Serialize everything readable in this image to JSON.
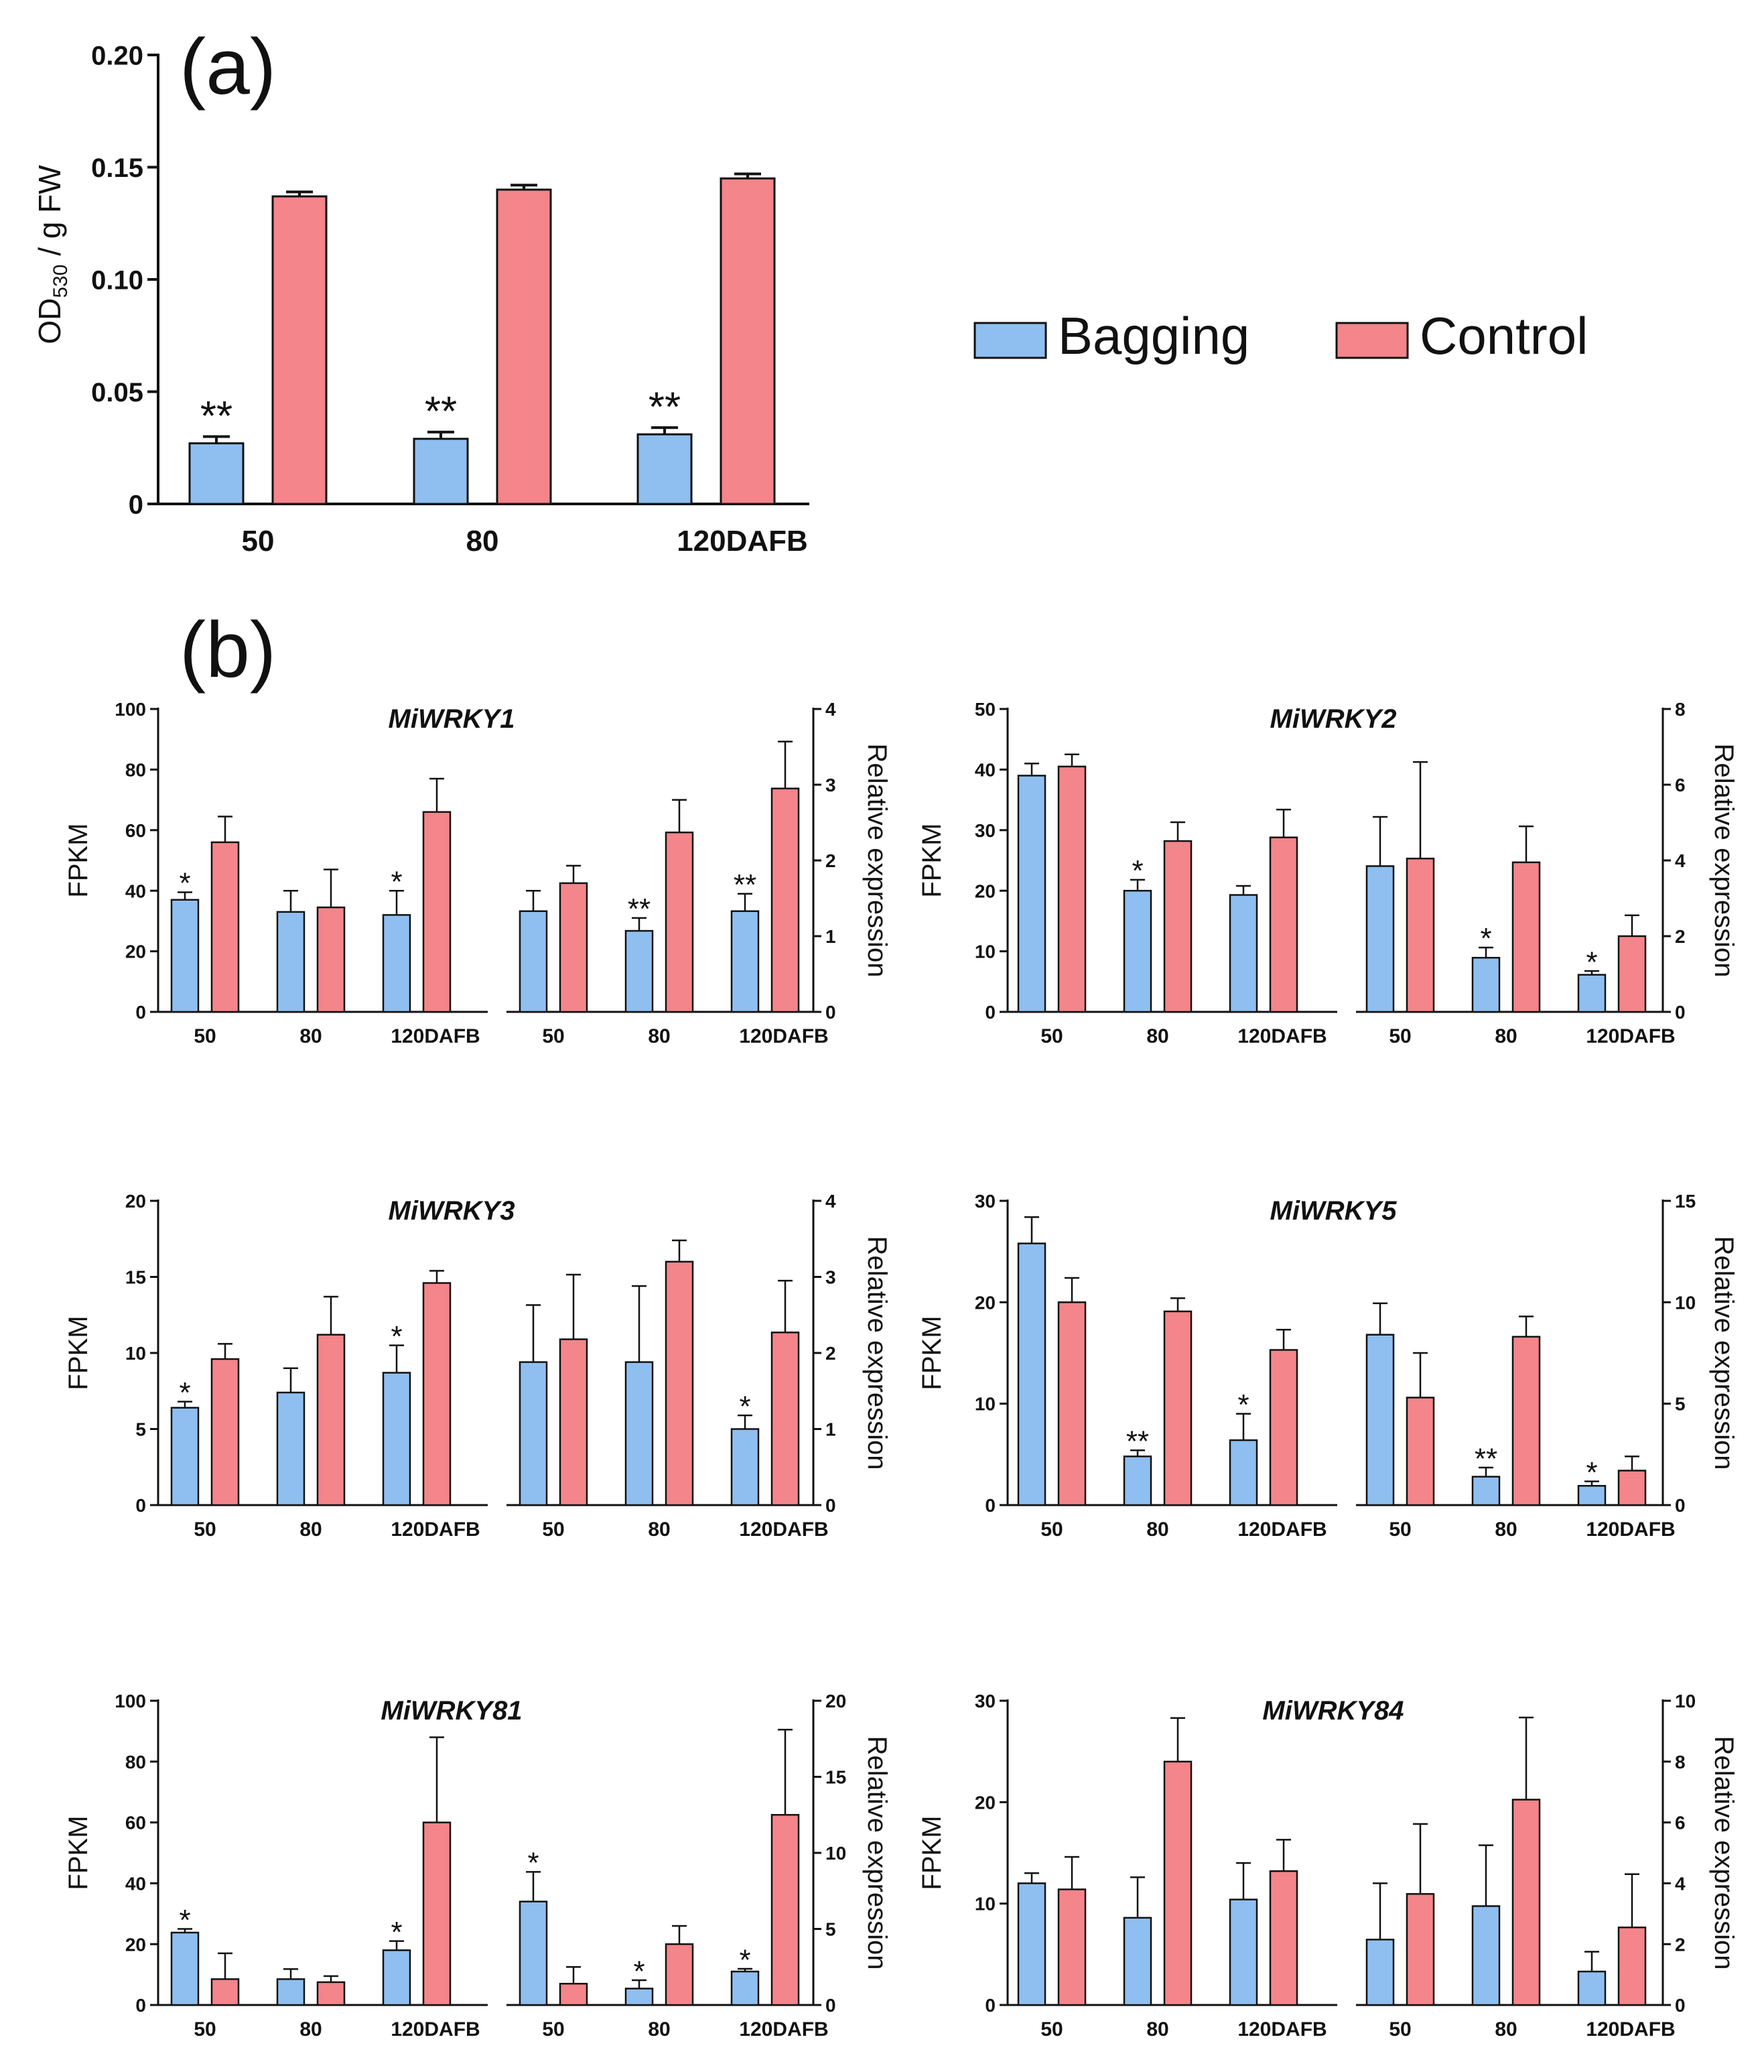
{
  "figure": {
    "colors": {
      "bagging": "#8fbff0",
      "control": "#f4858a",
      "axis": "#111111"
    },
    "legend": {
      "items": [
        "Bagging",
        "Control"
      ]
    }
  },
  "chart_data": [
    {
      "id": "a",
      "panel_label": "(a)",
      "type": "bar",
      "title": "",
      "categories": [
        "50",
        "80",
        "120DAFB"
      ],
      "ylabel_main": "OD",
      "ylabel_sub": "530",
      "ylabel_rest": " / g FW",
      "ylim": [
        0,
        0.2
      ],
      "yticks": [
        0,
        0.05,
        0.1,
        0.15,
        0.2
      ],
      "ytick_labels": [
        "0",
        "0.05",
        "0.10",
        "0.15",
        "0.20"
      ],
      "series": [
        {
          "name": "Bagging",
          "values": [
            0.027,
            0.029,
            0.031
          ],
          "errors": [
            0.003,
            0.003,
            0.003
          ],
          "marks": [
            "**",
            "**",
            "**"
          ]
        },
        {
          "name": "Control",
          "values": [
            0.137,
            0.14,
            0.145
          ],
          "errors": [
            0.002,
            0.002,
            0.002
          ],
          "marks": [
            "",
            "",
            ""
          ]
        }
      ]
    },
    {
      "id": "b-wrky1",
      "panel_label": "(b)",
      "type": "bar",
      "title": "MiWRKY1",
      "categories": [
        "50",
        "80",
        "120DAFB"
      ],
      "left": {
        "ylabel": "FPKM",
        "ylim": [
          0,
          100
        ],
        "yticks": [
          0,
          20,
          40,
          60,
          80,
          100
        ],
        "series": [
          {
            "name": "Bagging",
            "values": [
              37,
              33,
              32
            ],
            "errors": [
              2.5,
              7,
              8
            ],
            "marks": [
              "*",
              "",
              "*"
            ]
          },
          {
            "name": "Control",
            "values": [
              56,
              34.5,
              66
            ],
            "errors": [
              8.5,
              12.5,
              11
            ],
            "marks": [
              "",
              "",
              ""
            ]
          }
        ]
      },
      "right": {
        "ylabel": "Relative expression",
        "ylim": [
          0,
          4
        ],
        "yticks": [
          0,
          1,
          2,
          3,
          4
        ],
        "series": [
          {
            "name": "Bagging",
            "values": [
              1.33,
              1.07,
              1.33
            ],
            "errors": [
              0.27,
              0.17,
              0.23
            ],
            "marks": [
              "",
              "**",
              "**"
            ]
          },
          {
            "name": "Control",
            "values": [
              1.7,
              2.37,
              2.95
            ],
            "errors": [
              0.23,
              0.43,
              0.62
            ],
            "marks": [
              "",
              "",
              ""
            ]
          }
        ]
      }
    },
    {
      "id": "b-wrky2",
      "type": "bar",
      "title": "MiWRKY2",
      "categories": [
        "50",
        "80",
        "120DAFB"
      ],
      "left": {
        "ylabel": "FPKM",
        "ylim": [
          0,
          50
        ],
        "yticks": [
          0,
          10,
          20,
          30,
          40,
          50
        ],
        "series": [
          {
            "name": "Bagging",
            "values": [
              39,
              20,
              19.3
            ],
            "errors": [
              2,
              1.8,
              1.5
            ],
            "marks": [
              "",
              "*",
              ""
            ]
          },
          {
            "name": "Control",
            "values": [
              40.5,
              28.2,
              28.8
            ],
            "errors": [
              2,
              3.1,
              4.6
            ],
            "marks": [
              "",
              "",
              ""
            ]
          }
        ]
      },
      "right": {
        "ylabel": "Relative expression",
        "ylim": [
          0,
          8
        ],
        "yticks": [
          0,
          2,
          4,
          6,
          8
        ],
        "series": [
          {
            "name": "Bagging",
            "values": [
              3.85,
              1.43,
              0.98
            ],
            "errors": [
              1.3,
              0.27,
              0.1
            ],
            "marks": [
              "",
              "*",
              "*"
            ]
          },
          {
            "name": "Control",
            "values": [
              4.05,
              3.95,
              2.0
            ],
            "errors": [
              2.55,
              0.95,
              0.55
            ],
            "marks": [
              "",
              "",
              ""
            ]
          }
        ]
      }
    },
    {
      "id": "b-wrky3",
      "type": "bar",
      "title": "MiWRKY3",
      "categories": [
        "50",
        "80",
        "120DAFB"
      ],
      "left": {
        "ylabel": "FPKM",
        "ylim": [
          0,
          20
        ],
        "yticks": [
          0,
          5,
          10,
          15,
          20
        ],
        "series": [
          {
            "name": "Bagging",
            "values": [
              6.4,
              7.4,
              8.7
            ],
            "errors": [
              0.4,
              1.6,
              1.8
            ],
            "marks": [
              "*",
              "",
              "*"
            ]
          },
          {
            "name": "Control",
            "values": [
              9.6,
              11.2,
              14.6
            ],
            "errors": [
              1.0,
              2.5,
              0.8
            ],
            "marks": [
              "",
              "",
              ""
            ]
          }
        ]
      },
      "right": {
        "ylabel": "Relative expression",
        "ylim": [
          0,
          4
        ],
        "yticks": [
          0,
          1,
          2,
          3,
          4
        ],
        "series": [
          {
            "name": "Bagging",
            "values": [
              1.88,
              1.88,
              1.0
            ],
            "errors": [
              0.75,
              1.0,
              0.18
            ],
            "marks": [
              "",
              "",
              "*"
            ]
          },
          {
            "name": "Control",
            "values": [
              2.18,
              3.2,
              2.27
            ],
            "errors": [
              0.85,
              0.28,
              0.68
            ],
            "marks": [
              "",
              "",
              ""
            ]
          }
        ]
      }
    },
    {
      "id": "b-wrky5",
      "type": "bar",
      "title": "MiWRKY5",
      "categories": [
        "50",
        "80",
        "120DAFB"
      ],
      "left": {
        "ylabel": "FPKM",
        "ylim": [
          0,
          30
        ],
        "yticks": [
          0,
          10,
          20,
          30
        ],
        "series": [
          {
            "name": "Bagging",
            "values": [
              25.8,
              4.8,
              6.4
            ],
            "errors": [
              2.6,
              0.6,
              2.6
            ],
            "marks": [
              "",
              "**",
              "*"
            ]
          },
          {
            "name": "Control",
            "values": [
              20,
              19.1,
              15.3
            ],
            "errors": [
              2.4,
              1.3,
              2.0
            ],
            "marks": [
              "",
              "",
              ""
            ]
          }
        ]
      },
      "right": {
        "ylabel": "Relative expression",
        "ylim": [
          0,
          15
        ],
        "yticks": [
          0,
          5,
          10,
          15
        ],
        "series": [
          {
            "name": "Bagging",
            "values": [
              8.4,
              1.4,
              0.95
            ],
            "errors": [
              1.55,
              0.45,
              0.22
            ],
            "marks": [
              "",
              "**",
              "*"
            ]
          },
          {
            "name": "Control",
            "values": [
              5.3,
              8.3,
              1.7
            ],
            "errors": [
              2.2,
              1.0,
              0.7
            ],
            "marks": [
              "",
              "",
              ""
            ]
          }
        ]
      }
    },
    {
      "id": "b-wrky81",
      "type": "bar",
      "title": "MiWRKY81",
      "categories": [
        "50",
        "80",
        "120DAFB"
      ],
      "left": {
        "ylabel": "FPKM",
        "ylim": [
          0,
          100
        ],
        "yticks": [
          0,
          20,
          40,
          60,
          80,
          100
        ],
        "series": [
          {
            "name": "Bagging",
            "values": [
              23.8,
              8.5,
              18
            ],
            "errors": [
              1.2,
              3.3,
              3.0
            ],
            "marks": [
              "*",
              "",
              "*"
            ]
          },
          {
            "name": "Control",
            "values": [
              8.5,
              7.5,
              60
            ],
            "errors": [
              8.5,
              2.0,
              28
            ],
            "marks": [
              "",
              "",
              ""
            ]
          }
        ]
      },
      "right": {
        "ylabel": "Relative expression",
        "ylim": [
          0,
          20
        ],
        "yticks": [
          0,
          5,
          10,
          15,
          20
        ],
        "series": [
          {
            "name": "Bagging",
            "values": [
              6.8,
              1.08,
              2.2
            ],
            "errors": [
              1.95,
              0.55,
              0.18
            ],
            "marks": [
              "*",
              "*",
              "*"
            ]
          },
          {
            "name": "Control",
            "values": [
              1.4,
              4.0,
              12.5
            ],
            "errors": [
              1.1,
              1.2,
              5.6
            ],
            "marks": [
              "",
              "",
              ""
            ]
          }
        ]
      }
    },
    {
      "id": "b-wrky84",
      "type": "bar",
      "title": "MiWRKY84",
      "categories": [
        "50",
        "80",
        "120DAFB"
      ],
      "left": {
        "ylabel": "FPKM",
        "ylim": [
          0,
          30
        ],
        "yticks": [
          0,
          10,
          20,
          30
        ],
        "series": [
          {
            "name": "Bagging",
            "values": [
              12,
              8.6,
              10.4
            ],
            "errors": [
              1.0,
              4.0,
              3.6
            ],
            "marks": [
              "",
              "",
              ""
            ]
          },
          {
            "name": "Control",
            "values": [
              11.4,
              24,
              13.2
            ],
            "errors": [
              3.2,
              4.3,
              3.1
            ],
            "marks": [
              "",
              "",
              ""
            ]
          }
        ]
      },
      "right": {
        "ylabel": "Relative expression",
        "ylim": [
          0,
          10
        ],
        "yticks": [
          0,
          2,
          4,
          6,
          8,
          10
        ],
        "series": [
          {
            "name": "Bagging",
            "values": [
              2.15,
              3.25,
              1.1
            ],
            "errors": [
              1.85,
              2.0,
              0.65
            ],
            "marks": [
              "",
              "",
              ""
            ]
          },
          {
            "name": "Control",
            "values": [
              3.65,
              6.75,
              2.55
            ],
            "errors": [
              2.3,
              2.7,
              1.75
            ],
            "marks": [
              "",
              "",
              ""
            ]
          }
        ]
      }
    }
  ]
}
